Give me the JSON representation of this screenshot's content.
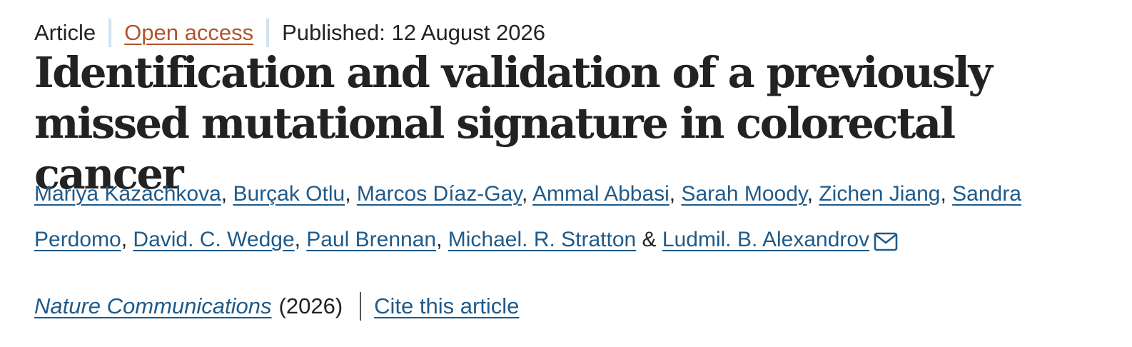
{
  "header": {
    "article_type": "Article",
    "access": "Open access",
    "published": "Published: 12 August 2026"
  },
  "title": "Identification and validation of a previously missed mutational signature in colorectal cancer",
  "authors": [
    "Mariya Kazachkova",
    "Burçak Otlu",
    "Marcos Díaz-Gay",
    "Ammal Abbasi",
    "Sarah Moody",
    "Zichen Jiang",
    "Sandra Perdomo",
    "David. C. Wedge",
    "Paul Brennan",
    "Michael. R. Stratton",
    "Ludmil. B. Alexandrov"
  ],
  "author_separator": ", ",
  "author_last_separator": " & ",
  "corresponding_icon": "mail-icon",
  "citation": {
    "journal": "Nature Communications",
    "year": "(2026)",
    "cite_label": "Cite this article"
  },
  "colors": {
    "link": "#1f5a8a",
    "open_access": "#b0542d",
    "text": "#222222",
    "separator": "#cfe3f2"
  }
}
